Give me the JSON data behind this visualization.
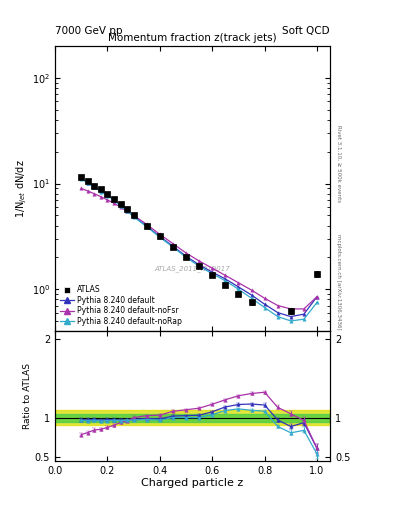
{
  "title_top_left": "7000 GeV pp",
  "title_top_right": "Soft QCD",
  "plot_title": "Momentum fraction z(track jets)",
  "xlabel": "Charged particle z",
  "ylabel_main": "1/N$_{jet}$ dN/dz",
  "ylabel_ratio": "Ratio to ATLAS",
  "watermark": "ATLAS_2011_I919017",
  "right_label": "Rivet 3.1.10, ≥ 500k events",
  "right_label2": "mcplots.cern.ch [arXiv:1306.3436]",
  "z_values": [
    0.1,
    0.125,
    0.15,
    0.175,
    0.2,
    0.225,
    0.25,
    0.275,
    0.3,
    0.35,
    0.4,
    0.45,
    0.5,
    0.55,
    0.6,
    0.65,
    0.7,
    0.75,
    0.8,
    0.85,
    0.9,
    0.95,
    1.0
  ],
  "atlas_y": [
    11.5,
    10.5,
    9.5,
    8.8,
    8.0,
    7.2,
    6.4,
    5.7,
    5.0,
    4.0,
    3.2,
    2.5,
    2.0,
    1.65,
    1.35,
    1.1,
    0.9,
    0.75,
    null,
    null,
    0.62,
    null,
    1.4
  ],
  "atlas_yerr": [
    0.5,
    0.4,
    0.4,
    0.35,
    0.3,
    0.25,
    0.25,
    0.2,
    0.18,
    0.15,
    0.12,
    0.1,
    0.08,
    0.07,
    0.06,
    0.05,
    0.04,
    0.04,
    null,
    null,
    0.04,
    null,
    0.1
  ],
  "py_default_y": [
    11.2,
    10.2,
    9.3,
    8.5,
    7.8,
    7.0,
    6.2,
    5.5,
    4.9,
    3.95,
    3.15,
    2.55,
    2.05,
    1.7,
    1.45,
    1.25,
    1.05,
    0.88,
    0.72,
    0.6,
    0.55,
    0.58,
    0.85
  ],
  "py_noFsr_y": [
    9.0,
    8.5,
    8.0,
    7.5,
    7.0,
    6.5,
    6.0,
    5.45,
    5.0,
    4.1,
    3.3,
    2.7,
    2.2,
    1.85,
    1.58,
    1.35,
    1.15,
    0.98,
    0.82,
    0.7,
    0.65,
    0.65,
    0.85
  ],
  "py_noRap_y": [
    11.1,
    10.1,
    9.2,
    8.4,
    7.7,
    6.95,
    6.15,
    5.5,
    4.85,
    3.9,
    3.1,
    2.5,
    2.0,
    1.65,
    1.4,
    1.2,
    1.0,
    0.82,
    0.67,
    0.55,
    0.5,
    0.52,
    0.75
  ],
  "color_atlas": "#000000",
  "color_default": "#3333bb",
  "color_noFsr": "#aa33aa",
  "color_noRap": "#33aacc",
  "legend_labels": [
    "ATLAS",
    "Pythia 8.240 default",
    "Pythia 8.240 default-noFsr",
    "Pythia 8.240 default-noRap"
  ],
  "ratio_default": [
    0.974,
    0.971,
    0.979,
    0.966,
    0.975,
    0.972,
    0.969,
    0.965,
    0.98,
    0.988,
    0.984,
    1.02,
    1.025,
    1.03,
    1.074,
    1.136,
    1.167,
    1.173,
    1.16,
    0.97,
    0.887,
    0.935,
    0.607
  ],
  "ratio_noFsr": [
    0.783,
    0.81,
    0.842,
    0.852,
    0.875,
    0.903,
    0.938,
    0.956,
    1.0,
    1.025,
    1.031,
    1.08,
    1.1,
    1.12,
    1.17,
    1.227,
    1.278,
    1.307,
    1.323,
    1.13,
    1.048,
    0.964,
    0.607
  ],
  "ratio_noRap": [
    0.965,
    0.962,
    0.968,
    0.955,
    0.963,
    0.965,
    0.961,
    0.965,
    0.97,
    0.975,
    0.969,
    1.0,
    1.0,
    1.0,
    1.037,
    1.09,
    1.111,
    1.093,
    1.081,
    0.887,
    0.806,
    0.838,
    0.536
  ],
  "ratio_default_err": [
    0.02,
    0.02,
    0.02,
    0.02,
    0.018,
    0.017,
    0.016,
    0.016,
    0.015,
    0.014,
    0.013,
    0.013,
    0.012,
    0.012,
    0.013,
    0.014,
    0.015,
    0.018,
    0.02,
    0.025,
    0.03,
    0.04,
    0.06
  ],
  "ratio_noFsr_err": [
    0.02,
    0.02,
    0.02,
    0.02,
    0.018,
    0.017,
    0.016,
    0.016,
    0.015,
    0.014,
    0.013,
    0.013,
    0.012,
    0.012,
    0.013,
    0.014,
    0.015,
    0.018,
    0.02,
    0.025,
    0.03,
    0.04,
    0.06
  ],
  "ratio_noRap_err": [
    0.02,
    0.02,
    0.02,
    0.02,
    0.018,
    0.017,
    0.016,
    0.016,
    0.015,
    0.014,
    0.013,
    0.013,
    0.012,
    0.012,
    0.013,
    0.014,
    0.015,
    0.018,
    0.02,
    0.025,
    0.03,
    0.04,
    0.06
  ],
  "green_band_lo": 0.95,
  "green_band_hi": 1.05,
  "yellow_band_lo": 0.9,
  "yellow_band_hi": 1.1,
  "xlim": [
    0.0,
    1.05
  ],
  "ylim_main": [
    0.4,
    200
  ],
  "ylim_ratio": [
    0.45,
    2.1
  ]
}
